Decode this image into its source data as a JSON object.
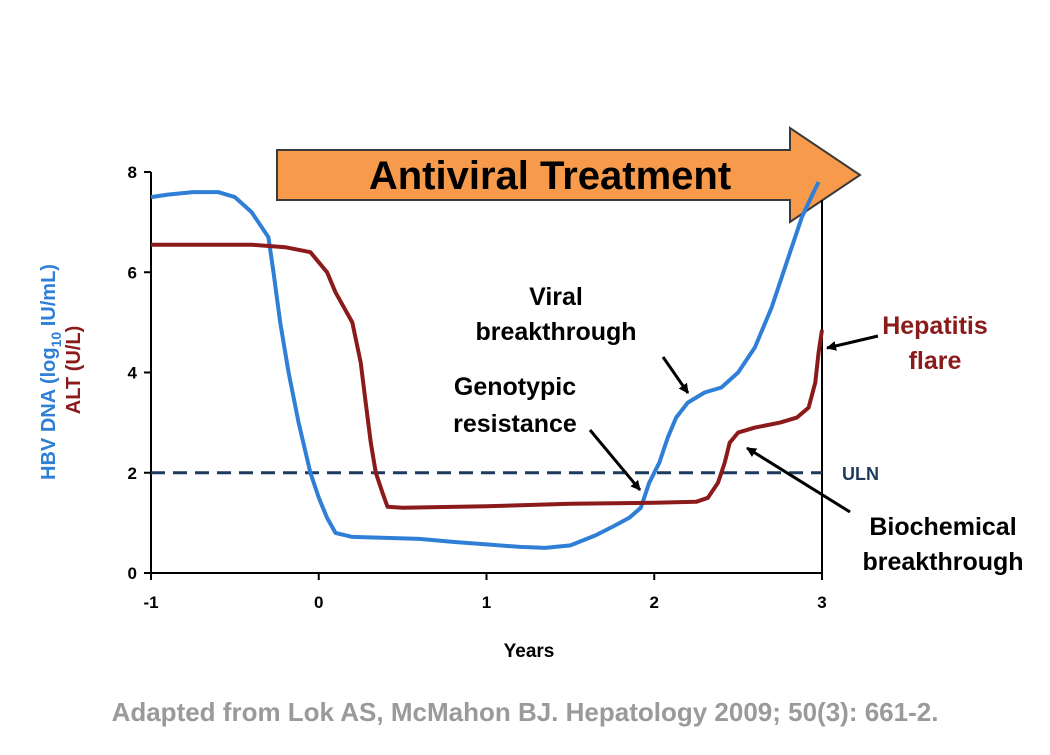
{
  "chart_data": {
    "type": "line",
    "xlabel": "Years",
    "ylabel_primary": "HBV DNA (log",
    "ylabel_primary_sub": "10",
    "ylabel_primary_unit": " IU/mL)",
    "ylabel_secondary": "ALT (U/L)",
    "xlim": [
      -1,
      3
    ],
    "ylim": [
      0,
      8
    ],
    "x_ticks": [
      "-1",
      "0",
      "1",
      "2",
      "3"
    ],
    "y_ticks": [
      "0",
      "2",
      "4",
      "6",
      "8"
    ],
    "series": [
      {
        "color": "#2f7fd6",
        "points": [
          [
            -1.0,
            7.5
          ],
          [
            -0.9,
            7.55
          ],
          [
            -0.75,
            7.6
          ],
          [
            -0.6,
            7.6
          ],
          [
            -0.5,
            7.5
          ],
          [
            -0.4,
            7.2
          ],
          [
            -0.3,
            6.7
          ],
          [
            -0.27,
            6.0
          ],
          [
            -0.23,
            5.0
          ],
          [
            -0.18,
            4.0
          ],
          [
            -0.12,
            3.0
          ],
          [
            -0.05,
            2.0
          ],
          [
            0.0,
            1.5
          ],
          [
            0.05,
            1.1
          ],
          [
            0.1,
            0.8
          ],
          [
            0.2,
            0.72
          ],
          [
            0.4,
            0.7
          ],
          [
            0.6,
            0.68
          ],
          [
            0.8,
            0.62
          ],
          [
            1.0,
            0.57
          ],
          [
            1.2,
            0.52
          ],
          [
            1.35,
            0.5
          ],
          [
            1.5,
            0.55
          ],
          [
            1.65,
            0.75
          ],
          [
            1.75,
            0.92
          ],
          [
            1.85,
            1.1
          ],
          [
            1.92,
            1.3
          ],
          [
            1.97,
            1.8
          ],
          [
            2.03,
            2.2
          ],
          [
            2.08,
            2.7
          ],
          [
            2.13,
            3.1
          ],
          [
            2.2,
            3.4
          ],
          [
            2.3,
            3.6
          ],
          [
            2.4,
            3.7
          ],
          [
            2.5,
            4.0
          ],
          [
            2.6,
            4.5
          ],
          [
            2.7,
            5.3
          ],
          [
            2.8,
            6.3
          ],
          [
            2.88,
            7.1
          ],
          [
            2.95,
            7.6
          ],
          [
            2.98,
            7.8
          ]
        ]
      },
      {
        "color": "#8b1a1a",
        "points": [
          [
            -1.0,
            6.55
          ],
          [
            -0.7,
            6.55
          ],
          [
            -0.4,
            6.55
          ],
          [
            -0.2,
            6.5
          ],
          [
            -0.05,
            6.4
          ],
          [
            0.05,
            6.0
          ],
          [
            0.1,
            5.6
          ],
          [
            0.2,
            5.0
          ],
          [
            0.25,
            4.2
          ],
          [
            0.28,
            3.4
          ],
          [
            0.31,
            2.6
          ],
          [
            0.34,
            2.0
          ],
          [
            0.38,
            1.6
          ],
          [
            0.41,
            1.32
          ],
          [
            0.5,
            1.3
          ],
          [
            1.0,
            1.33
          ],
          [
            1.5,
            1.38
          ],
          [
            2.0,
            1.4
          ],
          [
            2.25,
            1.42
          ],
          [
            2.32,
            1.5
          ],
          [
            2.38,
            1.8
          ],
          [
            2.42,
            2.2
          ],
          [
            2.45,
            2.6
          ],
          [
            2.5,
            2.8
          ],
          [
            2.6,
            2.9
          ],
          [
            2.75,
            3.0
          ],
          [
            2.85,
            3.1
          ],
          [
            2.92,
            3.3
          ],
          [
            2.96,
            3.8
          ],
          [
            2.98,
            4.4
          ],
          [
            3.0,
            4.85
          ]
        ]
      }
    ],
    "reference_line": {
      "y": 2,
      "label": "ULN",
      "color": "#1f3a5f",
      "style": "dashed"
    },
    "annotations": {
      "viral_1": "Viral",
      "viral_2": "breakthrough",
      "geno_1": "Genotypic",
      "geno_2": "resistance",
      "hep_1": "Hepatitis",
      "hep_2": "flare",
      "bio_1": "Biochemical",
      "bio_2": "breakthrough"
    },
    "banner": {
      "label": "Antiviral Treatment",
      "color": "#f79a4c"
    }
  },
  "citation": "Adapted from Lok AS, McMahon BJ. Hepatology 2009; 50(3): 661-2."
}
